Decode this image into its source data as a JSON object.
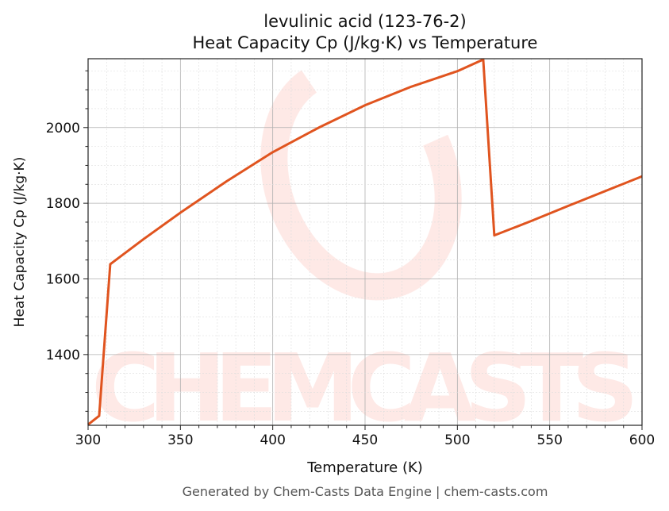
{
  "chart_data": {
    "type": "line",
    "title": "levulinic acid (123-76-2)",
    "subtitle": "Heat Capacity Cp (J/kg·K) vs Temperature",
    "xlabel": "Temperature (K)",
    "ylabel": "Heat Capacity Cp (J/kg·K)",
    "xlim": [
      300,
      600
    ],
    "ylim": [
      1213,
      2182
    ],
    "xticks": [
      300,
      350,
      400,
      450,
      500,
      550,
      600
    ],
    "yticks": [
      1400,
      1600,
      1800,
      2000
    ],
    "grid": true,
    "line_color": "#e0541f",
    "watermark": "CHEMCASTS",
    "x": [
      300,
      306,
      312,
      330,
      350,
      375,
      400,
      425,
      450,
      475,
      500,
      514,
      520,
      540,
      560,
      580,
      600
    ],
    "y": [
      1215,
      1238,
      1639,
      1705,
      1775,
      1858,
      1935,
      2000,
      2059,
      2108,
      2149,
      2180,
      1715,
      1753,
      1793,
      1832,
      1871
    ]
  },
  "footer": "Generated by Chem-Casts Data Engine | chem-casts.com"
}
